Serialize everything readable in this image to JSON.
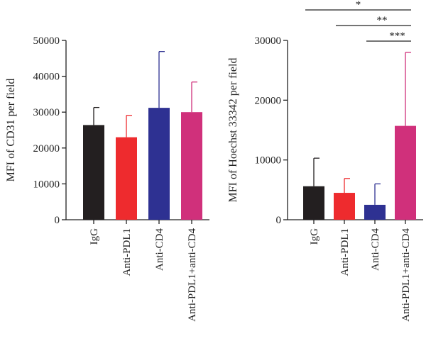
{
  "chart_data": [
    {
      "type": "bar",
      "ylabel": "MFI of CD31 per field",
      "ylim": [
        0,
        50000
      ],
      "yticks": [
        0,
        10000,
        20000,
        30000,
        40000,
        50000
      ],
      "ytick_labels": [
        "0",
        "10000",
        "20000",
        "30000",
        "40000",
        "50000"
      ],
      "categories": [
        "IgG",
        "Anti-PDL1",
        "Anti-CD4",
        "Anti-PDL1+anti-CD4"
      ],
      "values": [
        26400,
        23000,
        31200,
        30000
      ],
      "errors": [
        4900,
        6100,
        15700,
        8400
      ],
      "colors": [
        "#231f20",
        "#ee2b2e",
        "#2e3192",
        "#d0307b"
      ],
      "significance": []
    },
    {
      "type": "bar",
      "ylabel": "MFI of Hoechst 33342 per field",
      "ylim": [
        0,
        30000
      ],
      "yticks": [
        0,
        10000,
        20000,
        30000
      ],
      "ytick_labels": [
        "0",
        "10000",
        "20000",
        "30000"
      ],
      "categories": [
        "IgG",
        "Anti-PDL1",
        "Anti-CD4",
        "Anti-PDL1+anti-CD4"
      ],
      "values": [
        5600,
        4500,
        2500,
        15700
      ],
      "errors": [
        4700,
        2400,
        3500,
        12300
      ],
      "colors": [
        "#231f20",
        "#ee2b2e",
        "#2e3192",
        "#d0307b"
      ],
      "significance": [
        {
          "from": 0,
          "to": 3,
          "label": "*"
        },
        {
          "from": 1,
          "to": 3,
          "label": "**"
        },
        {
          "from": 2,
          "to": 3,
          "label": "***"
        }
      ]
    }
  ]
}
